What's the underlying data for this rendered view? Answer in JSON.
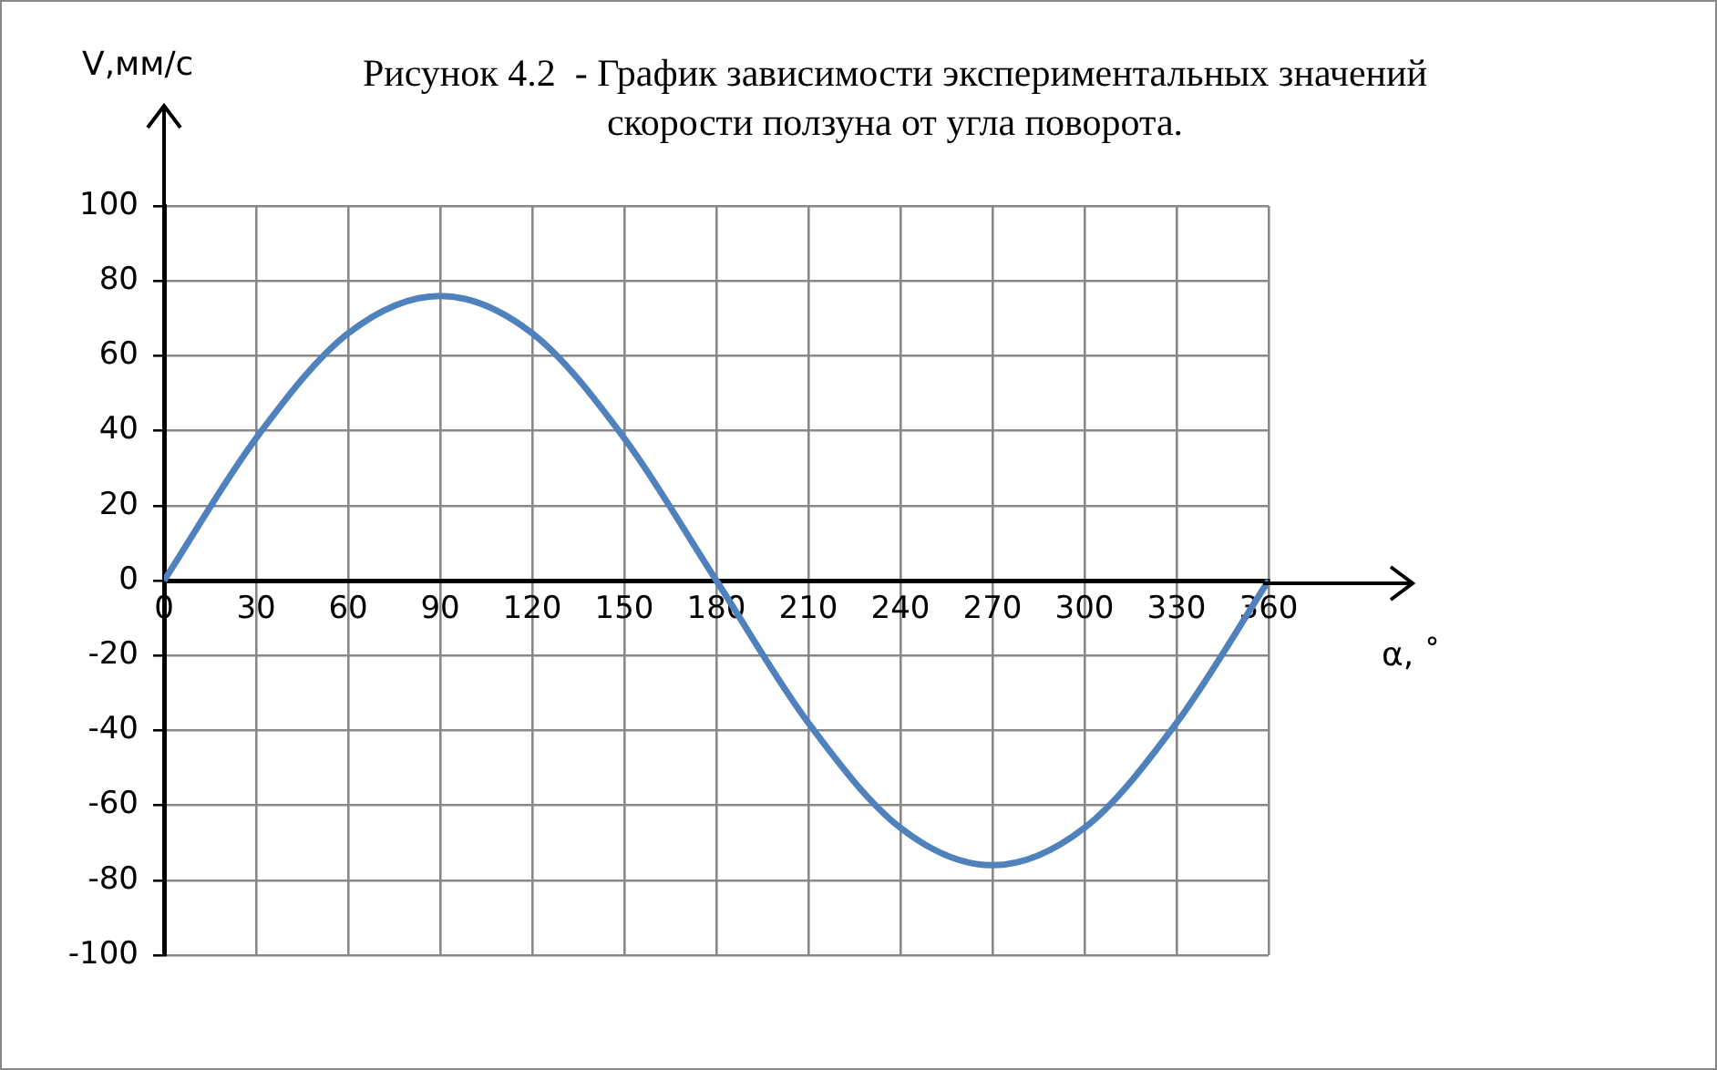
{
  "chart_data": {
    "type": "line",
    "title": "Рисунок 4.2  - График зависимости экспериментальных значений\nскорости ползуна от угла поворота.",
    "xlabel": "α, ˚",
    "ylabel": "V,мм/с",
    "x": [
      0,
      30,
      60,
      90,
      120,
      150,
      180,
      210,
      240,
      270,
      300,
      330,
      360
    ],
    "series": [
      {
        "color": "#4f81bd",
        "values": [
          0,
          38,
          66,
          76,
          66,
          38,
          0,
          -38,
          -66,
          -76,
          -66,
          -38,
          0
        ]
      }
    ],
    "xlim": [
      0,
      360
    ],
    "xticks": [
      0,
      30,
      60,
      90,
      120,
      150,
      180,
      210,
      240,
      270,
      300,
      330,
      360
    ],
    "ylim": [
      -100,
      100
    ],
    "yticks": [
      -100,
      -80,
      -60,
      -40,
      -20,
      0,
      20,
      40,
      60,
      80,
      100
    ],
    "grid": true,
    "legend": false,
    "marker": "none",
    "line_style": "solid"
  }
}
